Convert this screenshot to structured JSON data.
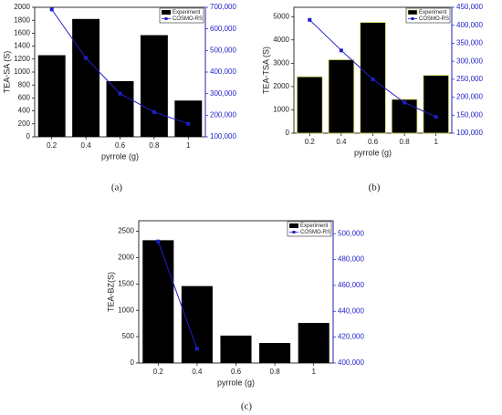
{
  "chart_data": [
    {
      "type": "bar",
      "caption": "(a)",
      "xlabel": "pyrrole (g)",
      "ylabel": "TEA-SA (S)",
      "categories": [
        "0.2",
        "0.4",
        "0.6",
        "0.8",
        "1"
      ],
      "series": [
        {
          "name": "Experiment",
          "type": "bar",
          "color": "#000000",
          "values": [
            1260,
            1820,
            860,
            1570,
            560
          ]
        },
        {
          "name": "COSMO-RS",
          "type": "line",
          "axis": "y2",
          "color": "#1f1fc8",
          "values": [
            690000,
            465000,
            300000,
            215000,
            160000
          ]
        }
      ],
      "ylim": [
        0,
        2000
      ],
      "yticks": [
        0,
        200,
        400,
        600,
        800,
        1000,
        1200,
        1400,
        1600,
        1800,
        2000
      ],
      "y2lim": [
        100000,
        700000
      ],
      "y2ticks": [
        {
          "value": 100000,
          "label": "100,000"
        },
        {
          "value": 200000,
          "label": "200,000"
        },
        {
          "value": 300000,
          "label": "300,000"
        },
        {
          "value": 400000,
          "label": "400,000"
        },
        {
          "value": 500000,
          "label": "500,000"
        },
        {
          "value": 600000,
          "label": "600,000"
        },
        {
          "value": 700000,
          "label": "700,000"
        }
      ],
      "legend": "upper right"
    },
    {
      "type": "bar",
      "caption": "(b)",
      "xlabel": "pyrrole (g)",
      "ylabel": "TEA-TSA (S)",
      "categories": [
        "0.2",
        "0.4",
        "0.6",
        "0.8",
        "1"
      ],
      "series": [
        {
          "name": "Experiment",
          "type": "bar",
          "color": "#000000",
          "edgecolor": "#d8d860",
          "values": [
            2420,
            3150,
            4750,
            1450,
            2480
          ]
        },
        {
          "name": "COSMO-RS",
          "type": "line",
          "axis": "y2",
          "color": "#1f1fc8",
          "values": [
            415000,
            330000,
            250000,
            185000,
            145000
          ]
        }
      ],
      "ylim": [
        0,
        5400
      ],
      "yticks": [
        0,
        1000,
        2000,
        3000,
        4000,
        5000
      ],
      "y2lim": [
        100000,
        450000
      ],
      "y2ticks": [
        {
          "value": 100000,
          "label": "100,000"
        },
        {
          "value": 150000,
          "label": "150,000"
        },
        {
          "value": 200000,
          "label": "200,000"
        },
        {
          "value": 250000,
          "label": "250,000"
        },
        {
          "value": 300000,
          "label": "300,000"
        },
        {
          "value": 350000,
          "label": "350,000"
        },
        {
          "value": 400000,
          "label": "400,000"
        },
        {
          "value": 450000,
          "label": "450,000"
        }
      ],
      "legend": "upper right"
    },
    {
      "type": "bar",
      "caption": "(c)",
      "xlabel": "pyrrole (g)",
      "ylabel": "TEA-BZ(S)",
      "categories": [
        "0.2",
        "0.4",
        "0.6",
        "0.8",
        "1"
      ],
      "series": [
        {
          "name": "Experiment",
          "type": "bar",
          "color": "#000000",
          "values": [
            2330,
            1460,
            520,
            380,
            760
          ]
        },
        {
          "name": "COSMO-RS",
          "type": "line",
          "axis": "y2",
          "color": "#1f1fc8",
          "values": [
            494000,
            411000,
            null,
            null,
            null
          ]
        }
      ],
      "ylim": [
        0,
        2700
      ],
      "yticks": [
        0,
        500,
        1000,
        1500,
        2000,
        2500
      ],
      "y2lim": [
        400000,
        510000
      ],
      "y2ticks": [
        {
          "value": 400000,
          "label": "400,000"
        },
        {
          "value": 420000,
          "label": "420,000"
        },
        {
          "value": 440000,
          "label": "440,000"
        },
        {
          "value": 460000,
          "label": "460,000"
        },
        {
          "value": 480000,
          "label": "480,000"
        },
        {
          "value": 500000,
          "label": "500,000"
        }
      ],
      "legend": "upper right"
    }
  ]
}
